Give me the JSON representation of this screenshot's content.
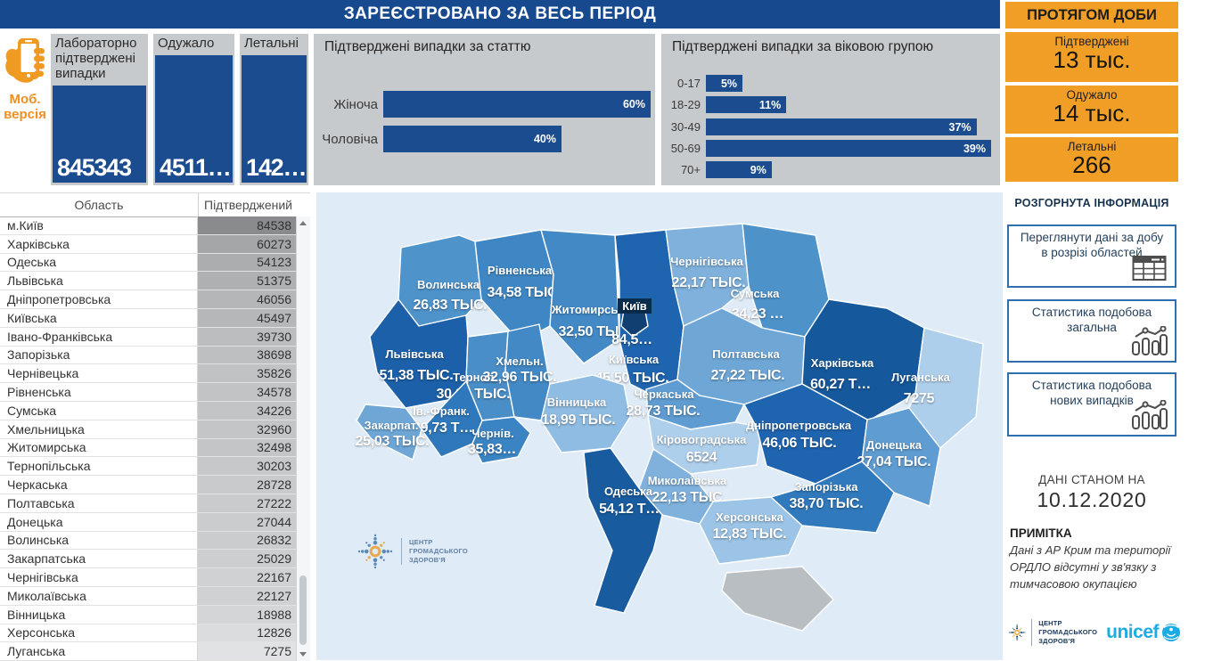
{
  "app": {
    "header_title": "ЗАРЕЄСТРОВАНО ЗА ВЕСЬ ПЕРІОД",
    "daily_title": "ПРОТЯГОМ ДОБИ"
  },
  "mobile": {
    "label": "Моб. версія"
  },
  "totals": {
    "cards": [
      {
        "label": "Лабораторно підтверджені випадки",
        "value": "845343"
      },
      {
        "label": "Одужало",
        "value": "4511…"
      },
      {
        "label": "Летальні",
        "value": "142…"
      }
    ]
  },
  "daily": {
    "cards": [
      {
        "label": "Підтверджені",
        "value": "13 тыс."
      },
      {
        "label": "Одужало",
        "value": "14 тыс."
      },
      {
        "label": "Летальні",
        "value": "266"
      }
    ]
  },
  "chart_data": [
    {
      "type": "bar",
      "orientation": "horizontal",
      "title": "Підтверджені випадки за статтю",
      "categories": [
        "Жіноча",
        "Чоловіча"
      ],
      "values": [
        60,
        40
      ],
      "value_labels": [
        "60%",
        "40%"
      ],
      "unit": "%",
      "xlim": [
        0,
        60
      ],
      "bar_color": "#1b4c8f",
      "grid": false,
      "legend": "none"
    },
    {
      "type": "bar",
      "orientation": "horizontal",
      "title": "Підтверджені випадки за віковою групою",
      "categories": [
        "0-17",
        "18-29",
        "30-49",
        "50-69",
        "70+"
      ],
      "values": [
        5,
        11,
        37,
        39,
        9
      ],
      "value_labels": [
        "5%",
        "11%",
        "37%",
        "39%",
        "9%"
      ],
      "unit": "%",
      "xlim": [
        0,
        39
      ],
      "bar_color": "#1b4c8f",
      "grid": false,
      "legend": "none"
    }
  ],
  "table": {
    "columns": [
      "Область",
      "Підтверджений"
    ],
    "max_value": 84538,
    "rows": [
      {
        "region": "м.Київ",
        "value": 84538
      },
      {
        "region": "Харківська",
        "value": 60273
      },
      {
        "region": "Одеська",
        "value": 54123
      },
      {
        "region": "Львівська",
        "value": 51375
      },
      {
        "region": "Дніпропетровська",
        "value": 46056
      },
      {
        "region": "Київська",
        "value": 45497
      },
      {
        "region": "Івано-Франківська",
        "value": 39730
      },
      {
        "region": "Запорізька",
        "value": 38698
      },
      {
        "region": "Чернівецька",
        "value": 35826
      },
      {
        "region": "Рівненська",
        "value": 34578
      },
      {
        "region": "Сумська",
        "value": 34226
      },
      {
        "region": "Хмельницька",
        "value": 32960
      },
      {
        "region": "Житомирська",
        "value": 32498
      },
      {
        "region": "Тернопільська",
        "value": 30203
      },
      {
        "region": "Черкаська",
        "value": 28728
      },
      {
        "region": "Полтавська",
        "value": 27222
      },
      {
        "region": "Донецька",
        "value": 27044
      },
      {
        "region": "Волинська",
        "value": 26832
      },
      {
        "region": "Закарпатська",
        "value": 25029
      },
      {
        "region": "Чернігівська",
        "value": 22167
      },
      {
        "region": "Миколаївська",
        "value": 22127
      },
      {
        "region": "Вінницька",
        "value": 18988
      },
      {
        "region": "Херсонська",
        "value": 12826
      },
      {
        "region": "Луганська",
        "value": 7275
      }
    ]
  },
  "map": {
    "sea_color": "#dfecf7",
    "crimea_color": "#b9bec3",
    "regions": [
      {
        "name": "Волинська",
        "value_label": "26,83 ТЫС.",
        "color": "#4f93cb"
      },
      {
        "name": "Рівненська",
        "value_label": "34,58 ТЫС.",
        "color": "#3f87c4"
      },
      {
        "name": "Житомирська",
        "value_label": "32,50 ТЫС.",
        "color": "#4289c6"
      },
      {
        "name": "Чернігівська",
        "value_label": "22,17 ТЫС.",
        "color": "#7fb1dc"
      },
      {
        "name": "Сумська",
        "value_label": "34,23 …",
        "color": "#4e92ca"
      },
      {
        "name": "Київська",
        "value_label": "45,50 ТЫС.",
        "color": "#1f64ae"
      },
      {
        "name": "Київ",
        "value_label": "84,5…",
        "color": "#123f72"
      },
      {
        "name": "Полтавська",
        "value_label": "27,22 ТЫС.",
        "color": "#6ea6d6"
      },
      {
        "name": "Харківська",
        "value_label": "60,27 Т…",
        "color": "#15589b"
      },
      {
        "name": "Луганська",
        "value_label": "7275",
        "color": "#aecfeb"
      },
      {
        "name": "Львівська",
        "value_label": "51,38 ТЫС.",
        "color": "#1b60a8"
      },
      {
        "name": "Терноп.",
        "value_label": "30,20 ТЫС.",
        "color": "#4a8ec8"
      },
      {
        "name": "Хмельн.",
        "value_label": "32,96 ТЫС.",
        "color": "#4389c5"
      },
      {
        "name": "Вінницька",
        "value_label": "18,99 ТЫС.",
        "color": "#8fbce2"
      },
      {
        "name": "Черкаська",
        "value_label": "28,73 ТЫС.",
        "color": "#5f9cd1"
      },
      {
        "name": "Ів.-Франк.",
        "value_label": "39,73 Т…",
        "color": "#2f78bb"
      },
      {
        "name": "Закарпат.",
        "value_label": "25,03 ТЫС.",
        "color": "#6ea6d6"
      },
      {
        "name": "Чернів.",
        "value_label": "35,83…",
        "color": "#3b84c3"
      },
      {
        "name": "Кіровоградська",
        "value_label": "6524",
        "color": "#aecfeb"
      },
      {
        "name": "Дніпропетровська",
        "value_label": "46,06 ТЫС.",
        "color": "#1f64ae"
      },
      {
        "name": "Донецька",
        "value_label": "27,04 ТЫС.",
        "color": "#5f9cd1"
      },
      {
        "name": "Запорізька",
        "value_label": "38,70 ТЫС.",
        "color": "#3079bc"
      },
      {
        "name": "Миколаївська",
        "value_label": "22,13 ТЫС.",
        "color": "#7fb1dc"
      },
      {
        "name": "Одеська",
        "value_label": "54,12 Т…",
        "color": "#185c9f"
      },
      {
        "name": "Херсонська",
        "value_label": "12,83 ТЫС.",
        "color": "#9cc4e6"
      }
    ]
  },
  "details": {
    "title": "РОЗГОРНУТА ІНФОРМАЦІЯ",
    "buttons": [
      {
        "label": "Переглянути дані за добу в розрізі областей"
      },
      {
        "label": "Статистика подобова загальна"
      },
      {
        "label": "Статистика подобова нових випадків"
      }
    ]
  },
  "as_of": {
    "label": "ДАНІ СТАНОМ НА",
    "date": "10.12.2020"
  },
  "note": {
    "title": "ПРИМІТКА",
    "text": "Дані з АР Крим та території ОРДЛО відсутні у зв'язку з тимчасовою окупацією"
  },
  "logos": {
    "phc": [
      "ЦЕНТР",
      "ГРОМАДСЬКОГО",
      "ЗДОРОВ'Я"
    ],
    "unicef": "unicef"
  },
  "colors": {
    "primary_blue": "#1b4c8f",
    "header_blue": "#17498f",
    "orange": "#f09e26",
    "panel_gray": "#c7cacd",
    "map_bg": "#dfecf7",
    "unicef_blue": "#1cabe2"
  }
}
